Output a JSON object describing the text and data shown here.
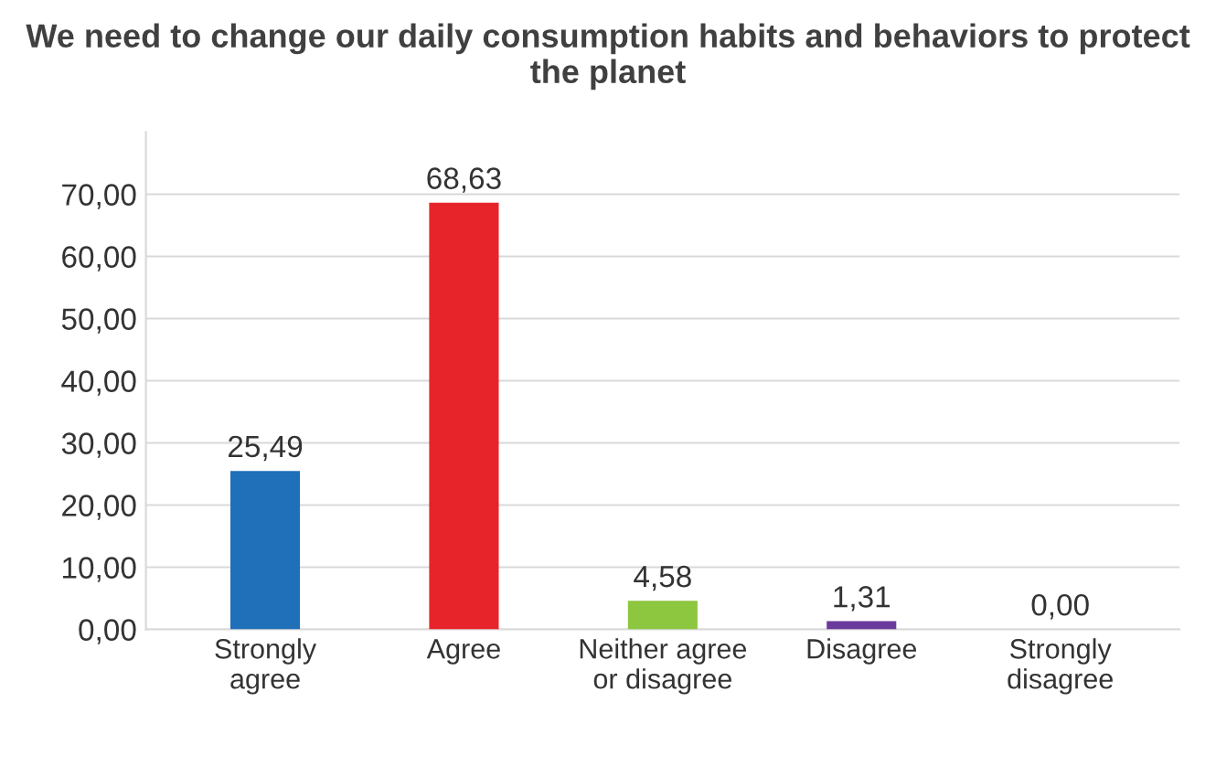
{
  "chart_data": {
    "type": "bar",
    "title": "We need to change our daily consumption habits and behaviors to protect the planet",
    "categories": [
      "Strongly\nagree",
      "Agree",
      "Neither agree\nor disagree",
      "Disagree",
      "Strongly\ndisagree"
    ],
    "values": [
      25.49,
      68.63,
      4.58,
      1.31,
      0.0
    ],
    "colors": [
      "#1f6fb9",
      "#e8242b",
      "#8dc63f",
      "#6a3a9c",
      "#a01c1c"
    ],
    "value_labels": [
      "25,49",
      "68,63",
      "4,58",
      "1,31",
      "0,00"
    ],
    "ylim": [
      0,
      80
    ],
    "yticks": [
      {
        "value": 0,
        "label": "0,00"
      },
      {
        "value": 10,
        "label": "10,00"
      },
      {
        "value": 20,
        "label": "20,00"
      },
      {
        "value": 30,
        "label": "30,00"
      },
      {
        "value": 40,
        "label": "40,00"
      },
      {
        "value": 50,
        "label": "50,00"
      },
      {
        "value": 60,
        "label": "60,00"
      },
      {
        "value": 70,
        "label": "70,00"
      }
    ],
    "grid": "y",
    "legend": false
  }
}
